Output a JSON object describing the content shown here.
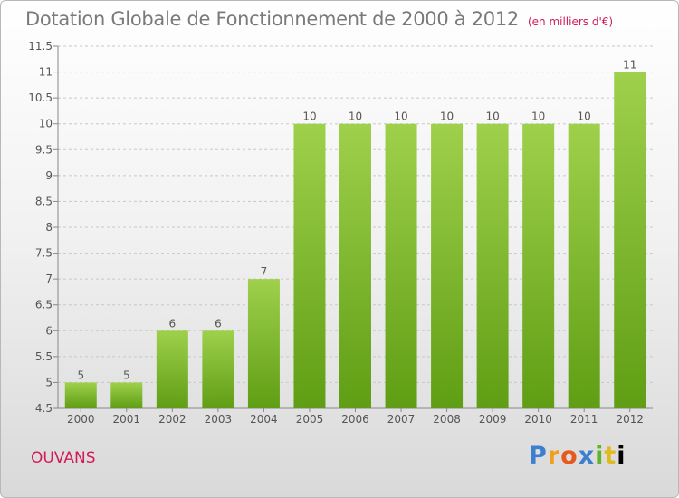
{
  "header": {
    "title": "Dotation Globale de Fonctionnement de 2000 à 2012",
    "subtitle": "(en milliers d'€)"
  },
  "footer": {
    "commune": "OUVANS",
    "brand": "Proxiti"
  },
  "colors": {
    "bar_top": "#9fd04c",
    "bar_bottom": "#5f9e14",
    "commune_text": "#d21a5a"
  },
  "chart_data": {
    "type": "bar",
    "title": "Dotation Globale de Fonctionnement de 2000 à 2012",
    "subtitle": "(en milliers d'€)",
    "xlabel": "",
    "ylabel": "",
    "categories": [
      "2000",
      "2001",
      "2002",
      "2003",
      "2004",
      "2005",
      "2006",
      "2007",
      "2008",
      "2009",
      "2010",
      "2011",
      "2012"
    ],
    "values": [
      5,
      5,
      6,
      6,
      7,
      10,
      10,
      10,
      10,
      10,
      10,
      10,
      11
    ],
    "data_labels": [
      "5",
      "5",
      "6",
      "6",
      "7",
      "10",
      "10",
      "10",
      "10",
      "10",
      "10",
      "10",
      "11"
    ],
    "ylim": [
      4.5,
      11.5
    ],
    "yticks": [
      4.5,
      5,
      5.5,
      6,
      6.5,
      7,
      7.5,
      8,
      8.5,
      9,
      9.5,
      10,
      10.5,
      11,
      11.5
    ],
    "ytick_labels": [
      "4.5",
      "5",
      "5.5",
      "6",
      "6.5",
      "7",
      "7.5",
      "8",
      "8.5",
      "9",
      "9.5",
      "10",
      "10.5",
      "11",
      "11.5"
    ],
    "grid": true,
    "legend": "none"
  }
}
